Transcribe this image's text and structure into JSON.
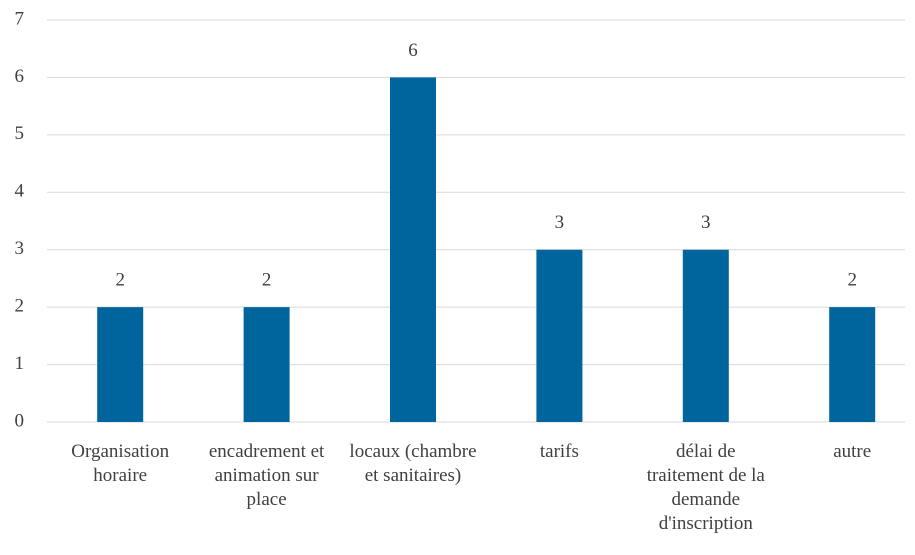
{
  "chart_data": {
    "type": "bar",
    "categories": [
      "Organisation horaire",
      "encadrement et animation sur place",
      "locaux (chambre et sanitaires)",
      "tarifs",
      "délai de traitement de la demande d'inscription",
      "autre"
    ],
    "values": [
      2,
      2,
      6,
      3,
      3,
      2
    ],
    "color": "#00659c",
    "ylim": [
      0,
      7
    ],
    "yticks": [
      0,
      1,
      2,
      3,
      4,
      5,
      6,
      7
    ],
    "grid": true
  }
}
